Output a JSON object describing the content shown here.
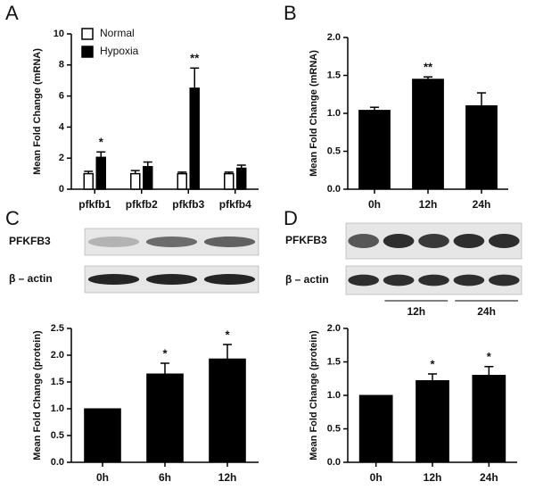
{
  "chart_data": [
    {
      "type": "bar",
      "panel": "A",
      "y_label": "Mean Fold Change (mRNA)",
      "categories": [
        "pfkfb1",
        "pfkfb2",
        "pfkfb3",
        "pfkfb4"
      ],
      "series": [
        {
          "name": "Normal",
          "color": "#ffffff",
          "values": [
            1.0,
            1.0,
            1.0,
            1.0
          ],
          "errors": [
            0.15,
            0.2,
            0.1,
            0.1
          ]
        },
        {
          "name": "Hypoxia",
          "color": "#000000",
          "values": [
            2.05,
            1.45,
            6.5,
            1.35
          ],
          "errors": [
            0.35,
            0.3,
            1.3,
            0.2
          ]
        }
      ],
      "significance": [
        "*",
        null,
        "**",
        null
      ],
      "ylim": [
        0,
        10
      ],
      "yticks": [
        0,
        2,
        4,
        6,
        8,
        10
      ],
      "legend": "top-left"
    },
    {
      "type": "bar",
      "panel": "B",
      "y_label": "Mean Fold Change (mRNA)",
      "categories": [
        "0h",
        "12h",
        "24h"
      ],
      "color": "#000000",
      "values": [
        1.04,
        1.45,
        1.1
      ],
      "errors": [
        0.04,
        0.03,
        0.17
      ],
      "significance": [
        null,
        "**",
        null
      ],
      "ylim": [
        0,
        2.0
      ],
      "yticks": [
        {
          "value": 0,
          "label": "0.0"
        },
        {
          "value": 0.5,
          "label": "0.5"
        },
        {
          "value": 1,
          "label": "1.0"
        },
        {
          "value": 1.5,
          "label": "1.5"
        },
        {
          "value": 2,
          "label": "2.0"
        }
      ]
    },
    {
      "type": "bar",
      "panel": "C",
      "y_label": "Mean Fold Change (protein)",
      "blot_rows": [
        "PFKFB3",
        "β – actin"
      ],
      "categories": [
        "0h",
        "6h",
        "12h"
      ],
      "color": "#000000",
      "values": [
        1.0,
        1.65,
        1.93
      ],
      "errors": [
        0,
        0.2,
        0.27
      ],
      "significance": [
        null,
        "*",
        "*"
      ],
      "ylim": [
        0,
        2.5
      ],
      "yticks": [
        {
          "value": 0,
          "label": "0.0"
        },
        {
          "value": 0.5,
          "label": "0.5"
        },
        {
          "value": 1,
          "label": "1.0"
        },
        {
          "value": 1.5,
          "label": "1.5"
        },
        {
          "value": 2,
          "label": "2.0"
        },
        {
          "value": 2.5,
          "label": "2.5"
        }
      ]
    },
    {
      "type": "bar",
      "panel": "D",
      "y_label": "Mean Fold Change (protein)",
      "blot_rows": [
        "PFKFB3",
        "β – actin"
      ],
      "blot_groups": [
        "12h",
        "24h"
      ],
      "categories": [
        "0h",
        "12h",
        "24h"
      ],
      "color": "#000000",
      "values": [
        1.0,
        1.22,
        1.3
      ],
      "errors": [
        0,
        0.1,
        0.13
      ],
      "significance": [
        null,
        "*",
        "*"
      ],
      "ylim": [
        0,
        2.0
      ],
      "yticks": [
        {
          "value": 0,
          "label": "0.0"
        },
        {
          "value": 0.5,
          "label": "0.5"
        },
        {
          "value": 1,
          "label": "1.0"
        },
        {
          "value": 1.5,
          "label": "1.5"
        },
        {
          "value": 2,
          "label": "2.0"
        }
      ]
    }
  ]
}
